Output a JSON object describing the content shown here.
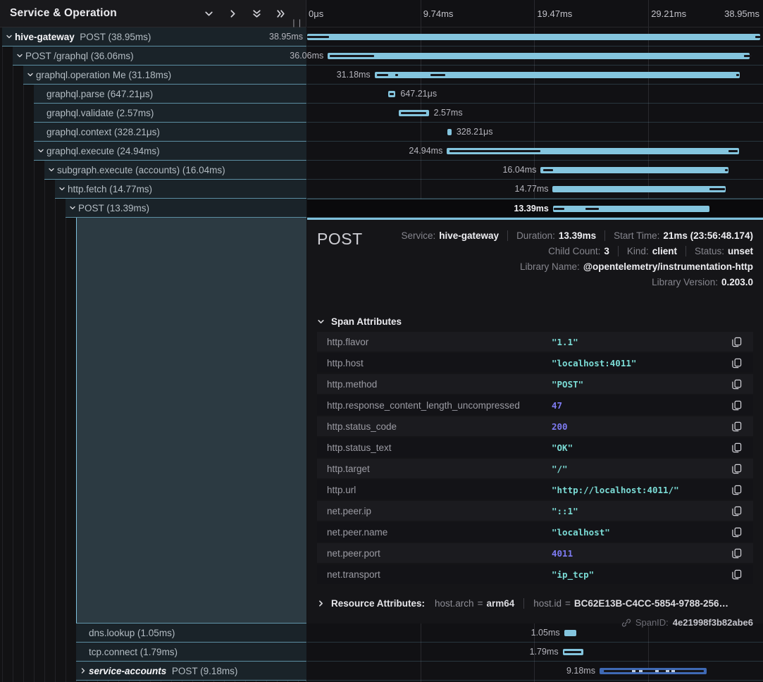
{
  "header": {
    "title": "Service & Operation",
    "icons": [
      "expand-level-icon",
      "collapse-level-icon",
      "expand-all-icon",
      "collapse-all-icon"
    ],
    "resize_handle": "||"
  },
  "ruler": {
    "ticks_ms": [
      0,
      9.74,
      19.47,
      29.21,
      38.95
    ],
    "tick_labels": [
      "0μs",
      "9.74ms",
      "19.47ms",
      "29.21ms",
      "38.95ms"
    ],
    "total_ms": 38.95
  },
  "colors": {
    "bar_light": "#84c5de",
    "bar_blue": "#3f69b4",
    "accent": "#7fc1dc",
    "string_value": "#7bdcd6",
    "number_value": "#7e7bf2"
  },
  "rows_top": [
    {
      "service": "hive-gateway",
      "label": "POST (38.95ms)",
      "depth": 0,
      "chevron": "down",
      "bar": {
        "start": 0,
        "dur": 38.95,
        "label": "38.95ms",
        "side": "left",
        "color": "light",
        "notches": [
          [
            0,
            1.85
          ],
          [
            38.3,
            38.85
          ]
        ]
      }
    },
    {
      "label": "POST /graphql (36.06ms)",
      "depth": 1,
      "chevron": "down",
      "bar": {
        "start": 1.76,
        "dur": 36.06,
        "label": "36.06ms",
        "side": "left",
        "color": "light",
        "notches": [
          [
            1.95,
            5.7
          ],
          [
            37.35,
            38.0
          ]
        ]
      }
    },
    {
      "label": "graphql.operation Me (31.18ms)",
      "depth": 2,
      "chevron": "down",
      "bar": {
        "start": 5.76,
        "dur": 31.18,
        "label": "31.18ms",
        "side": "left",
        "color": "light",
        "notches": [
          [
            5.95,
            6.9
          ],
          [
            7.5,
            7.75
          ],
          [
            10.55,
            11.8
          ],
          [
            36.65,
            36.9
          ]
        ]
      }
    },
    {
      "label": "graphql.parse (647.21μs)",
      "depth": 3,
      "chevron": null,
      "bar": {
        "start": 6.9,
        "dur": 0.65,
        "label": "647.21μs",
        "side": "right",
        "color": "light",
        "notches": [
          [
            7.02,
            7.4
          ]
        ]
      }
    },
    {
      "label": "graphql.validate (2.57ms)",
      "depth": 3,
      "chevron": null,
      "bar": {
        "start": 7.82,
        "dur": 2.57,
        "label": "2.57ms",
        "side": "right",
        "color": "light",
        "notches": [
          [
            7.98,
            10.2
          ]
        ]
      }
    },
    {
      "label": "graphql.context (328.21μs)",
      "depth": 3,
      "chevron": null,
      "bar": {
        "start": 12.0,
        "dur": 0.33,
        "label": "328.21μs",
        "side": "right",
        "color": "light",
        "notches": []
      }
    },
    {
      "label": "graphql.execute (24.94ms)",
      "depth": 3,
      "chevron": "down",
      "bar": {
        "start": 11.94,
        "dur": 24.94,
        "label": "24.94ms",
        "side": "left",
        "color": "light",
        "notches": [
          [
            12.15,
            19.9
          ],
          [
            36.0,
            36.8
          ]
        ]
      }
    },
    {
      "label": "subgraph.execute (accounts) (16.04ms)",
      "depth": 4,
      "chevron": "down",
      "bar": {
        "start": 19.95,
        "dur": 16.04,
        "label": "16.04ms",
        "side": "left",
        "color": "light",
        "notches": [
          [
            20.15,
            21.0
          ],
          [
            35.7,
            35.95
          ]
        ]
      }
    },
    {
      "label": "http.fetch (14.77ms)",
      "depth": 5,
      "chevron": "down",
      "bar": {
        "start": 20.98,
        "dur": 14.77,
        "label": "14.77ms",
        "side": "left",
        "color": "light",
        "notches": [
          [
            34.4,
            35.7
          ]
        ]
      }
    },
    {
      "label": "POST (13.39ms)",
      "depth": 6,
      "chevron": "down",
      "selected": true,
      "bar": {
        "start": 21.0,
        "dur": 13.39,
        "label": "13.39ms",
        "side": "left",
        "color": "light",
        "notches": [
          [
            21.1,
            21.95
          ],
          [
            23.75,
            24.9
          ]
        ]
      }
    }
  ],
  "rows_bottom": [
    {
      "label": "dns.lookup (1.05ms)",
      "depth": 7,
      "chevron": null,
      "bar": {
        "start": 21.95,
        "dur": 1.05,
        "label": "1.05ms",
        "side": "left",
        "color": "light",
        "notches": []
      }
    },
    {
      "label": "tcp.connect (1.79ms)",
      "depth": 7,
      "chevron": null,
      "bar": {
        "start": 21.83,
        "dur": 1.79,
        "label": "1.79ms",
        "side": "left",
        "color": "light",
        "notches": [
          [
            21.98,
            23.4
          ]
        ]
      }
    },
    {
      "service": "service-accounts",
      "service_italic": true,
      "label": "POST (9.18ms)",
      "depth": 7,
      "chevron": "right",
      "bar": {
        "start": 24.98,
        "dur": 9.18,
        "label": "9.18ms",
        "side": "left",
        "color": "blue",
        "notches": [
          [
            25.35,
            33.9
          ]
        ],
        "dashes": [
          0.3,
          0.37,
          0.52,
          0.62,
          0.67
        ]
      }
    }
  ],
  "detail": {
    "title": "POST",
    "meta_lines": [
      [
        {
          "label": "Service:",
          "value": "hive-gateway"
        },
        {
          "label": "Duration:",
          "value": "13.39ms"
        },
        {
          "label": "Start Time:",
          "value": "21ms (23:56:48.174)"
        }
      ],
      [
        {
          "label": "Child Count:",
          "value": "3"
        },
        {
          "label": "Kind:",
          "value": "client"
        },
        {
          "label": "Status:",
          "value": "unset"
        }
      ],
      [
        {
          "label": "Library Name:",
          "value": "@opentelemetry/instrumentation-http"
        }
      ],
      [
        {
          "label": "Library Version:",
          "value": "0.203.0"
        }
      ]
    ],
    "span_attributes_title": "Span Attributes",
    "attributes": [
      {
        "key": "http.flavor",
        "value": "\"1.1\"",
        "type": "string"
      },
      {
        "key": "http.host",
        "value": "\"localhost:4011\"",
        "type": "string"
      },
      {
        "key": "http.method",
        "value": "\"POST\"",
        "type": "string"
      },
      {
        "key": "http.response_content_length_uncompressed",
        "value": "47",
        "type": "number"
      },
      {
        "key": "http.status_code",
        "value": "200",
        "type": "number"
      },
      {
        "key": "http.status_text",
        "value": "\"OK\"",
        "type": "string"
      },
      {
        "key": "http.target",
        "value": "\"/\"",
        "type": "string"
      },
      {
        "key": "http.url",
        "value": "\"http://localhost:4011/\"",
        "type": "string"
      },
      {
        "key": "net.peer.ip",
        "value": "\"::1\"",
        "type": "string"
      },
      {
        "key": "net.peer.name",
        "value": "\"localhost\"",
        "type": "string"
      },
      {
        "key": "net.peer.port",
        "value": "4011",
        "type": "number"
      },
      {
        "key": "net.transport",
        "value": "\"ip_tcp\"",
        "type": "string"
      }
    ],
    "resource": {
      "title": "Resource Attributes:",
      "items": [
        {
          "key": "host.arch",
          "value": "arm64"
        },
        {
          "key": "host.id",
          "value": "BC62E13B-C4CC-5854-9788-256…"
        }
      ]
    },
    "spanid": {
      "label": "SpanID:",
      "value": "4e21998f3b82abe6"
    }
  }
}
